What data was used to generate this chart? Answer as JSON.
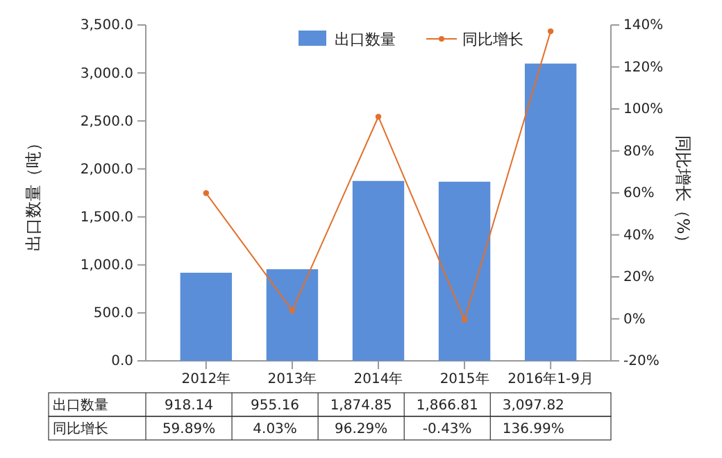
{
  "chart_data": {
    "type": "bar",
    "categories": [
      "2012年",
      "2013年",
      "2014年",
      "2015年",
      "2016年1-9月"
    ],
    "ylabel": "出口数量（吨）",
    "y2label": "同比增长（%）",
    "series": [
      {
        "name": "出口数量",
        "color": "#5b8ed8",
        "values": [
          918.14,
          955.16,
          1874.85,
          1866.81,
          3097.82
        ],
        "value_labels": [
          "918.14",
          "955.16",
          "1,874.85",
          "1,866.81",
          "3,097.82"
        ]
      },
      {
        "name": "同比增长",
        "type": "line",
        "axis": "y2",
        "color": "#e2702b",
        "marker": "circle",
        "values": [
          59.89,
          4.03,
          96.29,
          -0.43,
          136.99
        ],
        "value_labels": [
          "59.89%",
          "4.03%",
          "96.29%",
          "-0.43%",
          "136.99%"
        ]
      }
    ],
    "ylim": [
      0,
      3500
    ],
    "yticks": [
      {
        "value": 0,
        "label": "0.0"
      },
      {
        "value": 500,
        "label": "500.0"
      },
      {
        "value": 1000,
        "label": "1,000.0"
      },
      {
        "value": 1500,
        "label": "1,500.0"
      },
      {
        "value": 2000,
        "label": "2,000.0"
      },
      {
        "value": 2500,
        "label": "2,500.0"
      },
      {
        "value": 3000,
        "label": "3,000.0"
      },
      {
        "value": 3500,
        "label": "3,500.0"
      }
    ],
    "y2lim": [
      -20,
      140
    ],
    "y2ticks": [
      {
        "value": -20,
        "label": "-20%"
      },
      {
        "value": 0,
        "label": "0%"
      },
      {
        "value": 20,
        "label": "20%"
      },
      {
        "value": 40,
        "label": "40%"
      },
      {
        "value": 60,
        "label": "60%"
      },
      {
        "value": 80,
        "label": "80%"
      },
      {
        "value": 100,
        "label": "100%"
      },
      {
        "value": 120,
        "label": "120%"
      },
      {
        "value": 140,
        "label": "140%"
      }
    ],
    "legend": "top right",
    "grid": false
  }
}
